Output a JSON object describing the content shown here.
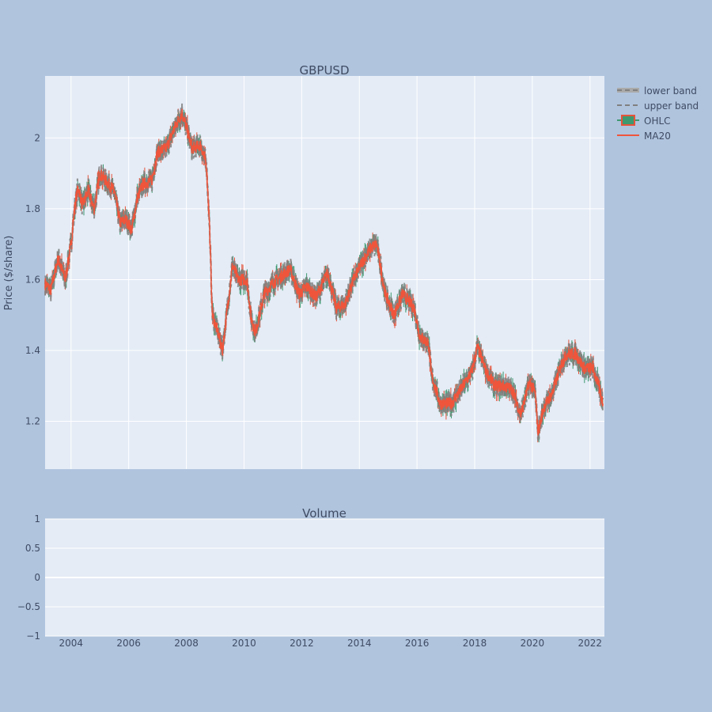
{
  "colors": {
    "background": "#b0c4de",
    "plot_bg": "#e5ecf6",
    "grid": "#ffffff",
    "text": "#3f4b63",
    "ma": "#ef553b",
    "band": "#808080",
    "ohlc_fill": "#3d9970",
    "ohlc_line": "#e5533a"
  },
  "chart_data": [
    {
      "type": "line",
      "title": "GBPUSD",
      "ylabel": "Price ($/share)",
      "xlabel": "",
      "xlim": [
        2003.1,
        2022.5
      ],
      "ylim": [
        1.065,
        2.175
      ],
      "yticks": [
        1.2,
        1.4,
        1.6,
        1.8,
        2.0
      ],
      "ytick_labels": [
        "1.2",
        "1.4",
        "1.6",
        "1.8",
        "2"
      ],
      "grid": true,
      "legend_position": "top-right",
      "legend": [
        "lower band",
        "upper band",
        "OHLC",
        "MA20"
      ],
      "anchors": [
        [
          2003.1,
          1.59
        ],
        [
          2003.3,
          1.57
        ],
        [
          2003.55,
          1.66
        ],
        [
          2003.8,
          1.6
        ],
        [
          2004.0,
          1.7
        ],
        [
          2004.15,
          1.82
        ],
        [
          2004.25,
          1.86
        ],
        [
          2004.4,
          1.81
        ],
        [
          2004.6,
          1.85
        ],
        [
          2004.8,
          1.8
        ],
        [
          2005.0,
          1.9
        ],
        [
          2005.2,
          1.88
        ],
        [
          2005.5,
          1.85
        ],
        [
          2005.7,
          1.76
        ],
        [
          2005.9,
          1.77
        ],
        [
          2006.1,
          1.74
        ],
        [
          2006.3,
          1.83
        ],
        [
          2006.5,
          1.87
        ],
        [
          2006.8,
          1.88
        ],
        [
          2007.0,
          1.96
        ],
        [
          2007.3,
          1.97
        ],
        [
          2007.6,
          2.03
        ],
        [
          2007.85,
          2.07
        ],
        [
          2008.0,
          2.03
        ],
        [
          2008.2,
          1.97
        ],
        [
          2008.5,
          1.98
        ],
        [
          2008.7,
          1.92
        ],
        [
          2008.8,
          1.76
        ],
        [
          2008.9,
          1.5
        ],
        [
          2009.1,
          1.45
        ],
        [
          2009.25,
          1.4
        ],
        [
          2009.6,
          1.64
        ],
        [
          2009.8,
          1.6
        ],
        [
          2010.1,
          1.6
        ],
        [
          2010.25,
          1.49
        ],
        [
          2010.4,
          1.45
        ],
        [
          2010.7,
          1.56
        ],
        [
          2011.0,
          1.59
        ],
        [
          2011.3,
          1.61
        ],
        [
          2011.6,
          1.63
        ],
        [
          2011.9,
          1.56
        ],
        [
          2012.2,
          1.58
        ],
        [
          2012.5,
          1.55
        ],
        [
          2012.9,
          1.62
        ],
        [
          2013.2,
          1.52
        ],
        [
          2013.5,
          1.53
        ],
        [
          2013.8,
          1.6
        ],
        [
          2014.1,
          1.65
        ],
        [
          2014.4,
          1.69
        ],
        [
          2014.6,
          1.7
        ],
        [
          2014.9,
          1.56
        ],
        [
          2015.2,
          1.5
        ],
        [
          2015.5,
          1.56
        ],
        [
          2015.9,
          1.52
        ],
        [
          2016.1,
          1.44
        ],
        [
          2016.4,
          1.42
        ],
        [
          2016.5,
          1.33
        ],
        [
          2016.8,
          1.25
        ],
        [
          2017.2,
          1.25
        ],
        [
          2017.6,
          1.3
        ],
        [
          2017.9,
          1.34
        ],
        [
          2018.1,
          1.41
        ],
        [
          2018.4,
          1.34
        ],
        [
          2018.7,
          1.3
        ],
        [
          2019.0,
          1.3
        ],
        [
          2019.3,
          1.29
        ],
        [
          2019.6,
          1.22
        ],
        [
          2019.9,
          1.31
        ],
        [
          2020.1,
          1.28
        ],
        [
          2020.2,
          1.17
        ],
        [
          2020.4,
          1.24
        ],
        [
          2020.7,
          1.28
        ],
        [
          2021.0,
          1.36
        ],
        [
          2021.2,
          1.39
        ],
        [
          2021.5,
          1.39
        ],
        [
          2021.8,
          1.35
        ],
        [
          2022.1,
          1.35
        ],
        [
          2022.3,
          1.3
        ],
        [
          2022.45,
          1.25
        ]
      ]
    },
    {
      "type": "bar",
      "title": "Volume",
      "ylim": [
        -1,
        1
      ],
      "yticks": [
        -1,
        -0.5,
        0,
        0.5,
        1
      ],
      "ytick_labels": [
        "−1",
        "−0.5",
        "0",
        "0.5",
        "1"
      ],
      "xticks": [
        2004,
        2006,
        2008,
        2010,
        2012,
        2014,
        2016,
        2018,
        2020,
        2022
      ],
      "xtick_labels": [
        "2004",
        "2006",
        "2008",
        "2010",
        "2012",
        "2014",
        "2016",
        "2018",
        "2020",
        "2022"
      ],
      "values": []
    }
  ]
}
